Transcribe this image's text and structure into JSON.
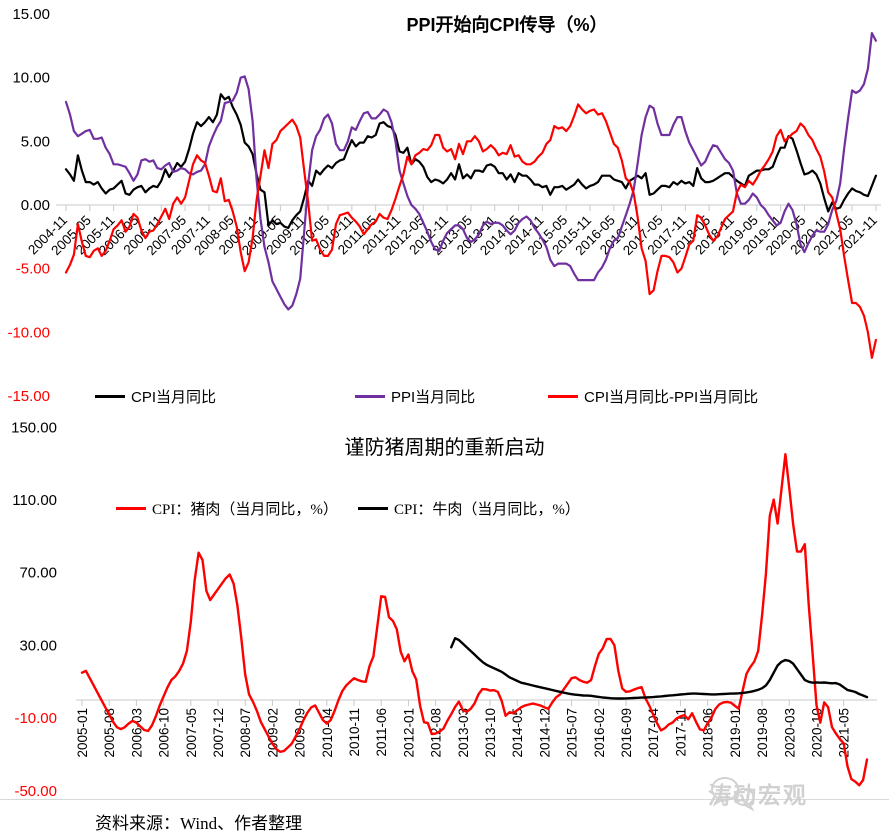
{
  "colors": {
    "background": "#FFFFFF",
    "axis_line": "#C9C9C9",
    "tick_label": "#000000",
    "negative_axis_label": "#FF0000",
    "watermark_gray": "#CDCDCD"
  },
  "footer": {
    "source": "资料来源：Wind、作者整理"
  },
  "watermark": {
    "text": "涛动宏观",
    "icon": "wechat-logo"
  },
  "chart_data": [
    {
      "type": "line",
      "title": "PPI开始向CPI传导（%）",
      "x_start": "2004-11",
      "x_frequency": "monthly",
      "x_tick_interval_months": 6,
      "x_tick_labels": [
        "2004-11",
        "2005-05",
        "2005-11",
        "2006-05",
        "2006-11",
        "2007-05",
        "2007-11",
        "2008-05",
        "2008-11",
        "2009-05",
        "2009-11",
        "2010-05",
        "2010-11",
        "2011-05",
        "2011-11",
        "2012-05",
        "2012-11",
        "2013-05",
        "2013-11",
        "2014-05",
        "2014-11",
        "2015-05",
        "2015-11",
        "2016-05",
        "2016-11",
        "2017-05",
        "2017-11",
        "2018-05",
        "2018-11",
        "2019-05",
        "2019-11",
        "2020-05",
        "2020-11",
        "2021-05",
        "2021-11"
      ],
      "ylim": [
        -15,
        15
      ],
      "y_ticks": [
        15,
        10,
        5,
        0,
        -5,
        -10,
        -15
      ],
      "y_tick_labels": [
        "15.00",
        "10.00",
        "5.00",
        "0.00",
        "-5.00",
        "-10.00",
        "-15.00"
      ],
      "grid": false,
      "legend_position": "bottom",
      "series": [
        {
          "name": "CPI当月同比",
          "color": "#000000",
          "values": [
            2.8,
            2.4,
            1.9,
            3.9,
            2.7,
            1.8,
            1.8,
            1.6,
            1.8,
            1.3,
            0.9,
            1.2,
            1.3,
            1.6,
            1.9,
            0.9,
            0.8,
            1.2,
            1.4,
            1.5,
            1.0,
            1.3,
            1.5,
            1.4,
            1.9,
            2.8,
            2.2,
            2.7,
            3.3,
            3.0,
            3.4,
            4.4,
            5.6,
            6.5,
            6.2,
            6.5,
            6.9,
            6.5,
            7.1,
            8.7,
            8.3,
            8.5,
            7.7,
            7.1,
            6.3,
            4.9,
            4.6,
            4.0,
            2.4,
            1.2,
            1.0,
            -1.6,
            -1.2,
            -1.5,
            -1.4,
            -1.7,
            -1.8,
            -1.2,
            -0.8,
            -0.5,
            0.6,
            1.9,
            1.5,
            2.7,
            2.4,
            2.8,
            3.1,
            2.9,
            3.3,
            3.5,
            3.6,
            4.4,
            5.1,
            4.6,
            4.9,
            4.9,
            5.4,
            5.3,
            5.5,
            6.4,
            6.5,
            6.2,
            6.1,
            5.5,
            4.2,
            4.1,
            4.5,
            3.2,
            3.6,
            3.4,
            3.0,
            2.2,
            1.8,
            2.0,
            1.9,
            1.7,
            2.0,
            2.5,
            2.0,
            3.2,
            2.1,
            2.4,
            2.1,
            2.7,
            2.7,
            2.6,
            3.1,
            3.2,
            3.0,
            2.5,
            2.5,
            2.0,
            2.4,
            1.8,
            2.5,
            2.3,
            2.3,
            2.0,
            1.6,
            1.6,
            1.4,
            1.5,
            0.8,
            1.4,
            1.4,
            1.5,
            1.2,
            1.4,
            1.6,
            2.0,
            1.6,
            1.3,
            1.5,
            1.6,
            1.8,
            2.3,
            2.3,
            2.3,
            2.0,
            1.9,
            1.8,
            1.3,
            1.9,
            2.1,
            2.3,
            2.1,
            2.5,
            0.8,
            0.9,
            1.2,
            1.5,
            1.5,
            1.4,
            1.8,
            1.6,
            1.9,
            1.7,
            1.8,
            1.5,
            2.9,
            2.1,
            1.8,
            1.8,
            1.9,
            2.1,
            2.3,
            2.5,
            2.5,
            2.2,
            1.9,
            1.7,
            1.5,
            2.3,
            2.5,
            2.7,
            2.7,
            2.8,
            2.8,
            3.0,
            3.8,
            4.5,
            4.5,
            5.4,
            5.2,
            4.3,
            3.3,
            2.4,
            2.5,
            2.7,
            2.4,
            1.7,
            0.5,
            -0.5,
            0.2,
            -0.3,
            -0.2,
            0.4,
            0.9,
            1.3,
            1.1,
            1.0,
            0.8,
            0.7,
            1.5,
            2.3
          ]
        },
        {
          "name": "PPI当月同比",
          "color": "#7030A0",
          "values": [
            8.1,
            7.1,
            5.8,
            5.4,
            5.6,
            5.8,
            5.9,
            5.2,
            5.2,
            5.3,
            4.5,
            4.0,
            3.2,
            3.2,
            3.1,
            3.0,
            2.5,
            1.9,
            2.4,
            3.5,
            3.6,
            3.4,
            3.5,
            2.9,
            2.8,
            3.1,
            3.3,
            2.6,
            2.7,
            2.9,
            2.8,
            2.5,
            2.4,
            2.6,
            2.7,
            3.2,
            4.6,
            5.4,
            6.1,
            6.6,
            8.0,
            8.1,
            8.2,
            8.8,
            10.0,
            10.1,
            9.1,
            6.6,
            2.0,
            -1.1,
            -3.3,
            -4.5,
            -6.0,
            -6.6,
            -7.2,
            -7.8,
            -8.2,
            -7.9,
            -7.0,
            -5.8,
            -2.1,
            1.7,
            4.3,
            5.4,
            5.9,
            6.8,
            7.1,
            6.4,
            4.8,
            4.3,
            4.3,
            5.0,
            6.1,
            5.9,
            6.6,
            7.2,
            7.3,
            6.8,
            6.8,
            7.1,
            7.5,
            7.3,
            6.5,
            5.0,
            2.7,
            1.7,
            0.7,
            0.0,
            -0.3,
            -0.7,
            -1.4,
            -2.1,
            -2.9,
            -3.5,
            -3.6,
            -2.8,
            -2.2,
            -1.9,
            -1.6,
            -1.6,
            -1.9,
            -2.6,
            -2.9,
            -2.7,
            -2.3,
            -1.6,
            -1.3,
            -1.5,
            -1.4,
            -1.4,
            -1.6,
            -2.0,
            -2.3,
            -2.0,
            -1.4,
            -1.1,
            -0.9,
            -1.2,
            -1.8,
            -2.2,
            -2.7,
            -3.3,
            -4.3,
            -4.8,
            -4.6,
            -4.6,
            -4.6,
            -4.8,
            -5.4,
            -5.9,
            -5.9,
            -5.9,
            -5.9,
            -5.9,
            -5.3,
            -4.9,
            -4.3,
            -3.4,
            -2.8,
            -2.6,
            -1.7,
            -0.8,
            0.1,
            1.2,
            3.3,
            5.5,
            6.9,
            7.8,
            7.6,
            6.4,
            5.5,
            5.5,
            5.5,
            6.3,
            6.9,
            6.9,
            5.8,
            4.9,
            4.3,
            3.7,
            3.1,
            3.4,
            4.1,
            4.7,
            4.6,
            4.1,
            3.6,
            3.3,
            2.7,
            0.9,
            0.1,
            0.1,
            0.4,
            0.9,
            0.6,
            0.0,
            -0.3,
            -0.8,
            -1.2,
            -1.6,
            -1.4,
            -0.5,
            0.1,
            -0.4,
            -1.5,
            -3.1,
            -3.7,
            -3.0,
            -2.4,
            -2.0,
            -2.1,
            -2.1,
            -1.5,
            -0.4,
            0.3,
            1.7,
            4.4,
            6.8,
            9.0,
            8.8,
            9.0,
            9.5,
            10.7,
            13.5,
            12.9
          ]
        },
        {
          "name": "CPI当月同比-PPI当月同比",
          "color": "#FF0000",
          "derived": "series0_minus_series1"
        }
      ]
    },
    {
      "type": "line",
      "title": "谨防猪周期的重新启动",
      "x_start": "2005-01",
      "x_frequency": "monthly",
      "x_tick_interval_months": 7,
      "x_tick_labels": [
        "2005-01",
        "2005-08",
        "2006-03",
        "2006-10",
        "2007-05",
        "2007-12",
        "2008-07",
        "2009-02",
        "2009-09",
        "2010-04",
        "2010-11",
        "2011-06",
        "2012-01",
        "2012-08",
        "2013-03",
        "2013-10",
        "2014-05",
        "2014-12",
        "2015-07",
        "2016-02",
        "2016-09",
        "2017-04",
        "2017-11",
        "2018-06",
        "2019-01",
        "2019-08",
        "2020-03",
        "2020-10",
        "2021-05"
      ],
      "ylim": [
        -50,
        150
      ],
      "y_ticks": [
        150,
        110,
        70,
        30,
        -10,
        -50
      ],
      "y_tick_labels": [
        "150.00",
        "110.00",
        "70.00",
        "30.00",
        "-10.00",
        "-50.00"
      ],
      "grid": false,
      "legend_position": "top-inside",
      "series": [
        {
          "name": "CPI：猪肉（当月同比，%）",
          "color": "#FF0000",
          "start_offset": 0,
          "values": [
            15,
            16,
            12,
            8,
            4,
            0,
            -4,
            -8,
            -12,
            -15,
            -16,
            -15,
            -13,
            -11.5,
            -12.5,
            -14.5,
            -16.5,
            -17,
            -14,
            -9,
            -3,
            2,
            7,
            11,
            13,
            16,
            20,
            27,
            43,
            66,
            81,
            77,
            60,
            55,
            58,
            61,
            64,
            67,
            69,
            64,
            52,
            34,
            14,
            3,
            -1,
            -6,
            -12,
            -16,
            -20,
            -24,
            -27,
            -28.5,
            -28,
            -26,
            -24,
            -20,
            -16,
            -11,
            -7,
            -4,
            -3,
            -7,
            -11,
            -13,
            -11,
            -6,
            0,
            5,
            8,
            10,
            12,
            11,
            10.3,
            10,
            18.8,
            24,
            40.4,
            57.1,
            56.7,
            45.5,
            43.5,
            38.9,
            26.5,
            21.3,
            25,
            15.9,
            11.3,
            -3.2,
            -12.2,
            -12.7,
            -18.7,
            -18.5,
            -17.4,
            -15.8,
            -11.5,
            -7.8,
            -3.8,
            -0.9,
            -5.5,
            -6.5,
            -4.9,
            -1.9,
            3,
            6,
            5.9,
            5.2,
            5.4,
            4.5,
            -0.5,
            -8.7,
            -6.7,
            -7.2,
            -5.6,
            -4,
            -3,
            -2.5,
            -2,
            -2.5,
            -3,
            -4,
            -4.9,
            -1.4,
            1.5,
            3,
            6,
            9,
            12,
            12.5,
            11,
            10,
            9.5,
            11,
            18.8,
            25.4,
            28.4,
            33.5,
            33.6,
            30.1,
            16.1,
            6.4,
            4.5,
            4.8,
            5.7,
            6.5,
            7.1,
            0.9,
            -3.2,
            -8.1,
            -12.8,
            -16.7,
            -15.5,
            -13.4,
            -12.4,
            -10.1,
            -9,
            -8.3,
            -10.6,
            -7.3,
            -12,
            -16.1,
            -16.7,
            -12.8,
            -9.6,
            -4.9,
            -2.4,
            -1.3,
            -1.1,
            -1.5,
            -3.2,
            -4.8,
            5.1,
            14.4,
            18.2,
            21.1,
            27,
            46.7,
            69.3,
            101.3,
            110.2,
            97,
            116,
            135.2,
            116.4,
            96.9,
            81.7,
            81.6,
            85.7,
            52.6,
            25.5,
            -2.8,
            -12.5,
            -1.3,
            -3.9,
            -14.9,
            -18.4,
            -21.4,
            -23.8,
            -36.5,
            -43.5,
            -44.9,
            -46.9,
            -44,
            -32.7
          ]
        },
        {
          "name": "CPI：牛肉（当月同比，%）",
          "color": "#000000",
          "start_offset": 95,
          "start_month": "2012-12",
          "values": [
            29,
            34,
            33,
            31,
            29,
            27,
            25,
            23,
            21,
            19.5,
            18.5,
            17.5,
            16.5,
            15.5,
            14,
            12.5,
            11.5,
            10.5,
            9.5,
            9,
            8.5,
            8,
            7.5,
            7,
            6.5,
            6,
            5.5,
            5,
            4.5,
            4,
            3.6,
            3.2,
            2.9,
            2.7,
            2.5,
            2.4,
            2.3,
            2,
            1.7,
            1.4,
            1.2,
            1,
            0.9,
            0.8,
            0.8,
            0.9,
            1,
            1.1,
            1.2,
            1.3,
            1.4,
            1.5,
            1.6,
            1.8,
            2,
            2.2,
            2.4,
            2.6,
            2.8,
            3,
            3.2,
            3.4,
            3.5,
            3.5,
            3.4,
            3.3,
            3.2,
            3.1,
            3.1,
            3.2,
            3.3,
            3.4,
            3.5,
            3.6,
            3.7,
            3.9,
            4.2,
            4.5,
            5,
            5.6,
            6.5,
            8,
            11,
            15,
            19,
            21,
            22,
            21.5,
            20,
            17,
            14,
            11,
            10,
            9.5,
            9.7,
            9.5,
            9.6,
            9.4,
            9.2,
            9.3,
            8.5,
            7,
            5.5,
            5,
            4.4,
            3.3,
            2.5,
            1.6
          ]
        }
      ]
    }
  ]
}
